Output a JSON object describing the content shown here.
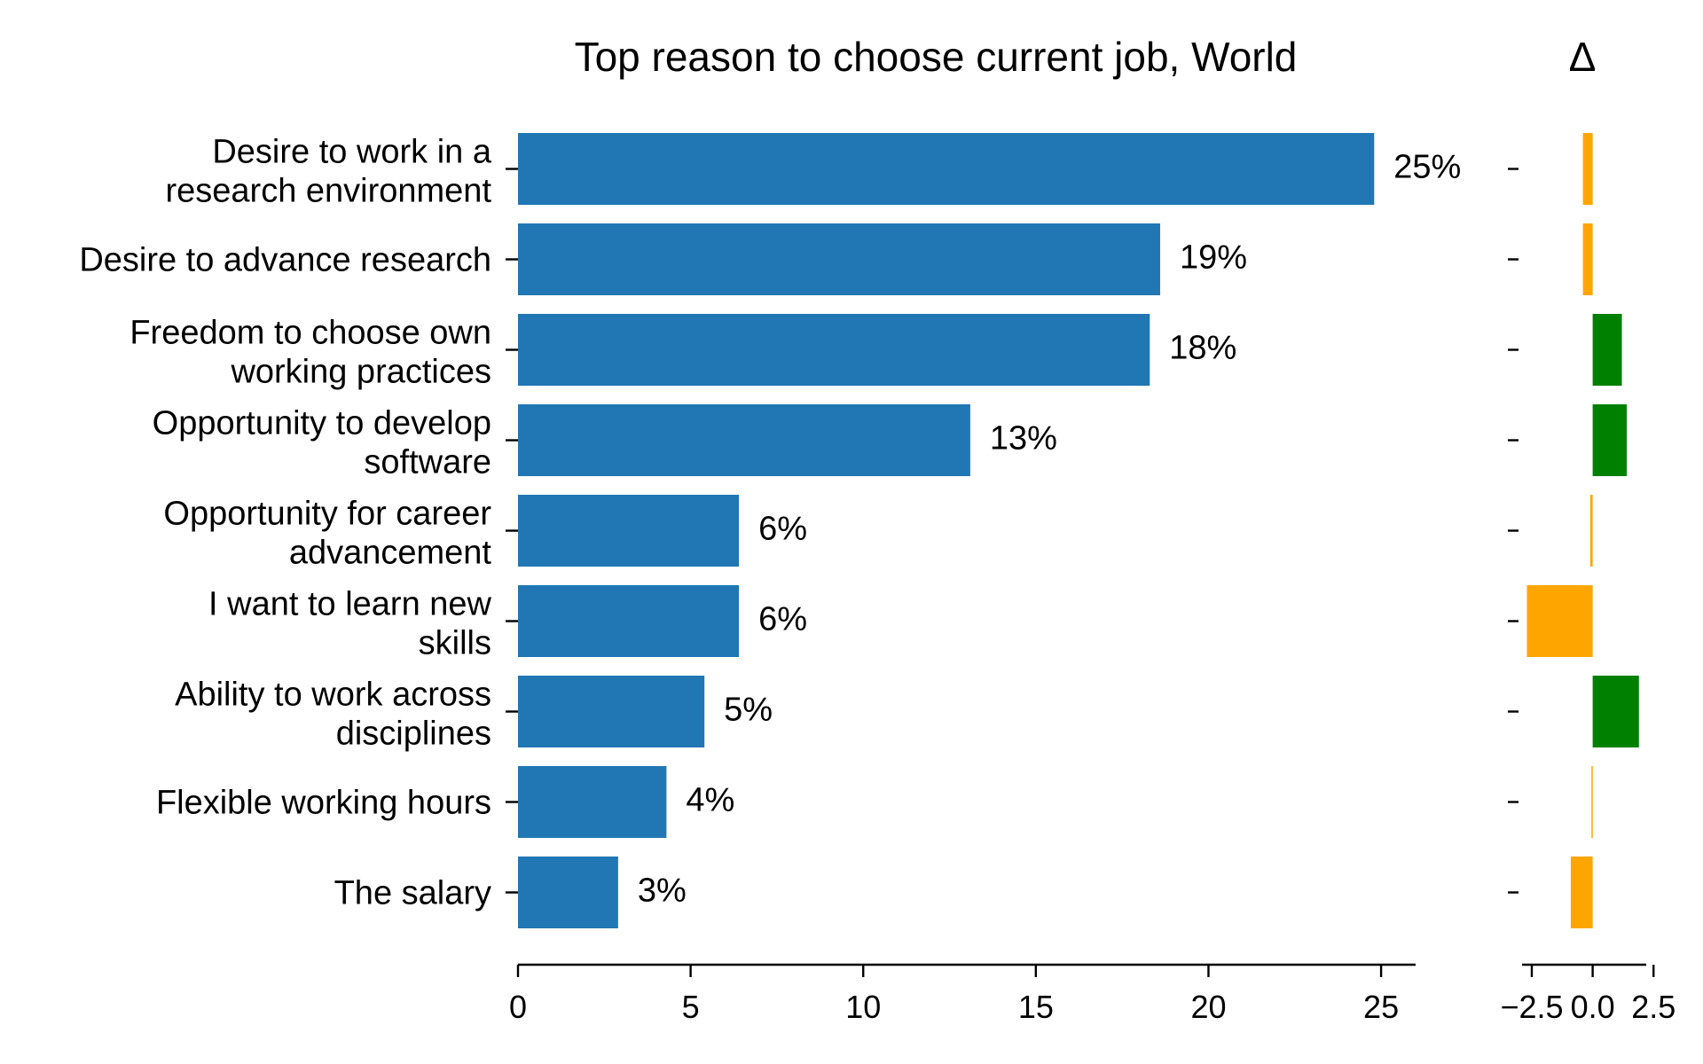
{
  "chart_data": [
    {
      "type": "bar",
      "orientation": "horizontal",
      "title": "Top reason to choose current job, World",
      "xlabel": "",
      "ylabel": "",
      "categories": [
        [
          "Desire to work in a",
          "research environment"
        ],
        [
          "Desire to advance research"
        ],
        [
          "Freedom to choose own",
          "working practices"
        ],
        [
          "Opportunity to develop",
          "software"
        ],
        [
          "Opportunity for career",
          "advancement"
        ],
        [
          "I want to learn new",
          "skills"
        ],
        [
          "Ability to work across",
          "disciplines"
        ],
        [
          "Flexible working hours"
        ],
        [
          "The salary"
        ]
      ],
      "values": [
        24.8,
        18.6,
        18.3,
        13.1,
        6.4,
        6.4,
        5.4,
        4.3,
        2.9
      ],
      "data_labels": [
        "25%",
        "19%",
        "18%",
        "13%",
        "6%",
        "6%",
        "5%",
        "4%",
        "3%"
      ],
      "xlim": [
        0,
        26
      ],
      "xticks": [
        0,
        5,
        10,
        15,
        20,
        25
      ],
      "xtick_labels": [
        "0",
        "5",
        "10",
        "15",
        "20",
        "25"
      ],
      "bar_color": "#2077b4",
      "grid": false,
      "legend": "none"
    },
    {
      "type": "bar",
      "orientation": "horizontal",
      "title": "Δ",
      "xlabel": "",
      "ylabel": "",
      "categories_ref": "same as first chart",
      "values": [
        -0.4,
        -0.4,
        1.2,
        1.4,
        -0.1,
        -2.7,
        1.9,
        -0.05,
        -0.9
      ],
      "xlim": [
        -2.9,
        2.2
      ],
      "xticks": [
        -2.5,
        0.0,
        2.5
      ],
      "xtick_labels": [
        "−2.5",
        "0.0",
        "2.5"
      ],
      "positive_color": "#008000",
      "negative_color": "#ffa500",
      "grid": false,
      "legend": "none"
    }
  ]
}
